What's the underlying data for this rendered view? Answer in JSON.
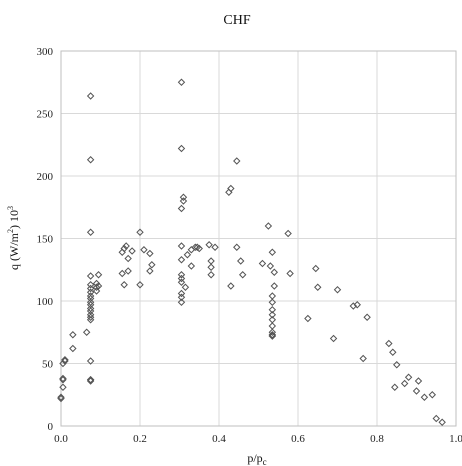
{
  "chart_data": {
    "type": "scatter",
    "title": "CHF",
    "xlabel_main": "p/p",
    "xlabel_sub": "c",
    "ylabel_main": "q (W/m",
    "ylabel_sup": "2",
    "ylabel_tail": ") 10",
    "ylabel_sup2": "3",
    "xlim": [
      0,
      1.0
    ],
    "ylim": [
      0,
      300
    ],
    "xticks": [
      "0.0",
      "0.2",
      "0.4",
      "0.6",
      "0.8",
      "1.0"
    ],
    "yticks": [
      "0",
      "50",
      "100",
      "150",
      "200",
      "250",
      "300"
    ],
    "grid": true,
    "marker": "diamond",
    "x": [
      0.0,
      0.0,
      0.005,
      0.005,
      0.005,
      0.01,
      0.01,
      0.005,
      0.03,
      0.03,
      0.065,
      0.075,
      0.075,
      0.075,
      0.075,
      0.075,
      0.075,
      0.075,
      0.075,
      0.075,
      0.075,
      0.075,
      0.075,
      0.075,
      0.075,
      0.075,
      0.075,
      0.075,
      0.075,
      0.075,
      0.075,
      0.09,
      0.09,
      0.09,
      0.095,
      0.095,
      0.155,
      0.155,
      0.16,
      0.16,
      0.165,
      0.17,
      0.17,
      0.18,
      0.2,
      0.2,
      0.21,
      0.225,
      0.225,
      0.23,
      0.305,
      0.305,
      0.305,
      0.305,
      0.305,
      0.305,
      0.305,
      0.305,
      0.305,
      0.305,
      0.305,
      0.31,
      0.31,
      0.315,
      0.32,
      0.33,
      0.33,
      0.34,
      0.345,
      0.35,
      0.375,
      0.38,
      0.38,
      0.38,
      0.39,
      0.425,
      0.43,
      0.43,
      0.445,
      0.445,
      0.455,
      0.46,
      0.51,
      0.525,
      0.53,
      0.535,
      0.535,
      0.535,
      0.535,
      0.535,
      0.535,
      0.535,
      0.535,
      0.535,
      0.535,
      0.535,
      0.54,
      0.54,
      0.575,
      0.58,
      0.625,
      0.645,
      0.65,
      0.69,
      0.7,
      0.74,
      0.75,
      0.765,
      0.775,
      0.83,
      0.84,
      0.845,
      0.85,
      0.87,
      0.88,
      0.9,
      0.905,
      0.92,
      0.94,
      0.95,
      0.965
    ],
    "y": [
      22,
      23,
      37,
      38,
      50,
      52,
      53,
      31,
      62,
      73,
      75,
      264,
      213,
      155,
      120,
      113,
      110,
      107,
      104,
      102,
      99,
      97,
      94,
      92,
      89,
      87,
      85,
      52,
      37,
      36,
      37,
      114,
      111,
      108,
      121,
      112,
      139,
      122,
      113,
      142,
      144,
      124,
      134,
      140,
      113,
      155,
      141,
      124,
      138,
      129,
      275,
      222,
      174,
      144,
      133,
      121,
      118,
      115,
      106,
      103,
      99,
      183,
      180,
      111,
      137,
      141,
      128,
      143,
      143,
      142,
      145,
      121,
      132,
      127,
      143,
      187,
      190,
      112,
      143,
      212,
      132,
      121,
      130,
      160,
      128,
      139,
      104,
      99,
      93,
      89,
      85,
      80,
      75,
      73,
      72,
      72,
      123,
      112,
      154,
      122,
      86,
      126,
      111,
      70,
      109,
      96,
      97,
      54,
      87,
      66,
      59,
      31,
      49,
      34,
      39,
      28,
      36,
      23,
      25,
      6,
      3
    ]
  }
}
